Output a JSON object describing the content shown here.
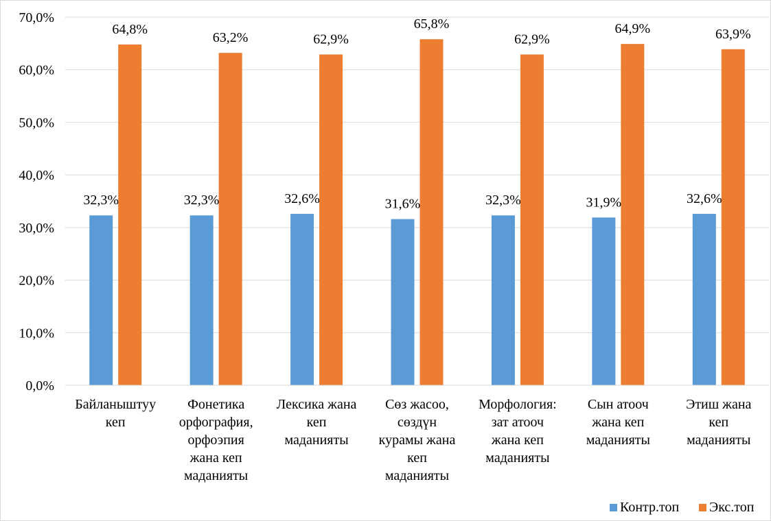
{
  "chart_data": {
    "type": "bar",
    "categories": [
      [
        "Байланыштуу",
        "кеп"
      ],
      [
        "Фонетика",
        "орфография,",
        "орфоэпия",
        "жана кеп",
        "маданияты"
      ],
      [
        "Лексика жана",
        "кеп",
        "маданияты"
      ],
      [
        "Сөз жасоо,",
        "сөздүн",
        "курамы жана",
        "кеп",
        "маданияты"
      ],
      [
        "Морфология:",
        "зат атооч",
        "жана кеп",
        "маданияты"
      ],
      [
        "Сын атооч",
        "жана кеп",
        "маданияты"
      ],
      [
        "Этиш жана",
        "кеп",
        "маданияты"
      ]
    ],
    "series": [
      {
        "name": "Контр.топ",
        "color": "#5b9bd5",
        "values": [
          32.3,
          32.3,
          32.6,
          31.6,
          32.3,
          31.9,
          32.6
        ],
        "labels": [
          "32,3%",
          "32,3%",
          "32,6%",
          "31,6%",
          "32,3%",
          "31,9%",
          "32,6%"
        ]
      },
      {
        "name": "Экс.топ",
        "color": "#ed7d31",
        "values": [
          64.8,
          63.2,
          62.9,
          65.8,
          62.9,
          64.9,
          63.9
        ],
        "labels": [
          "64,8%",
          "63,2%",
          "62,9%",
          "65,8%",
          "62,9%",
          "64,9%",
          "63,9%"
        ]
      }
    ],
    "ylim": [
      0,
      70
    ],
    "yticks": [
      "0,0%",
      "10,0%",
      "20,0%",
      "30,0%",
      "40,0%",
      "50,0%",
      "60,0%",
      "70,0%"
    ],
    "grid": true,
    "legend_position": "bottom-right",
    "title": "",
    "xlabel": "",
    "ylabel": ""
  }
}
